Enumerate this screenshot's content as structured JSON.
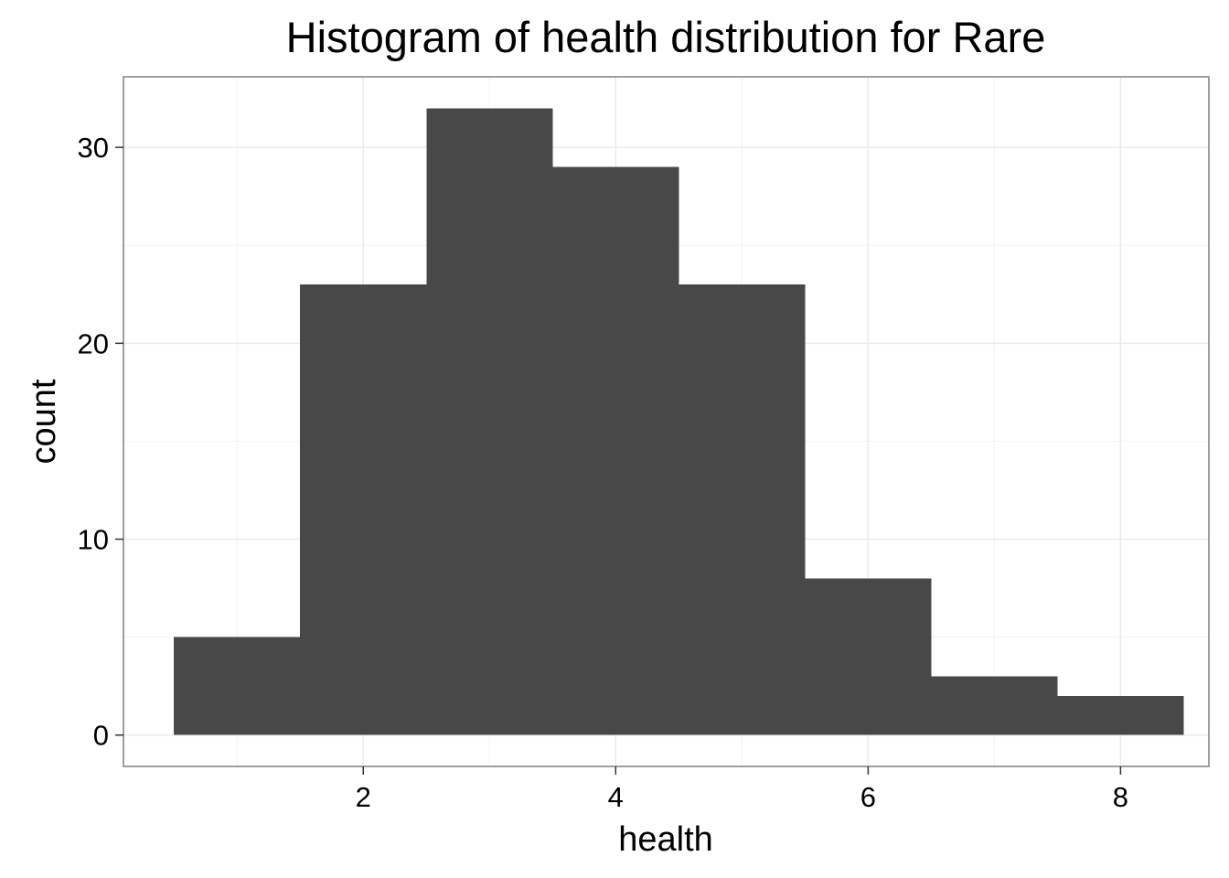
{
  "chart_data": {
    "type": "bar",
    "title": "Histogram of health distribution for Rare",
    "xlabel": "health",
    "ylabel": "count",
    "bins": [
      {
        "x0": 0.5,
        "x1": 1.5,
        "count": 5
      },
      {
        "x0": 1.5,
        "x1": 2.5,
        "count": 23
      },
      {
        "x0": 2.5,
        "x1": 3.5,
        "count": 32
      },
      {
        "x0": 3.5,
        "x1": 4.5,
        "count": 29
      },
      {
        "x0": 4.5,
        "x1": 5.5,
        "count": 23
      },
      {
        "x0": 5.5,
        "x1": 6.5,
        "count": 8
      },
      {
        "x0": 6.5,
        "x1": 7.5,
        "count": 3
      },
      {
        "x0": 7.5,
        "x1": 8.5,
        "count": 2
      }
    ],
    "xlim": [
      0.1,
      8.7
    ],
    "ylim": [
      -1.6,
      33.6
    ],
    "xticks": [
      2,
      4,
      6,
      8
    ],
    "yticks": [
      0,
      10,
      20,
      30
    ],
    "xtick_labels": [
      "2",
      "4",
      "6",
      "8"
    ],
    "ytick_labels": [
      "0",
      "10",
      "20",
      "30"
    ],
    "grid": true,
    "bar_color": "#484848",
    "panel_border_color": "#7f7f7f",
    "grid_major_color": "#ebebeb",
    "grid_minor_color": "#f3f3f3",
    "background_color": "#ffffff"
  }
}
